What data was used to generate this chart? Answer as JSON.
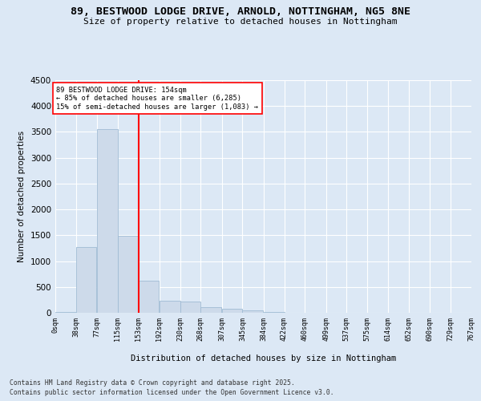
{
  "title": "89, BESTWOOD LODGE DRIVE, ARNOLD, NOTTINGHAM, NG5 8NE",
  "subtitle": "Size of property relative to detached houses in Nottingham",
  "xlabel": "Distribution of detached houses by size in Nottingham",
  "ylabel": "Number of detached properties",
  "bar_color": "#cddaea",
  "bar_edge_color": "#a0bcd4",
  "red_line_x": 153,
  "annotation_title": "89 BESTWOOD LODGE DRIVE: 154sqm",
  "annotation_line1": "← 85% of detached houses are smaller (6,285)",
  "annotation_line2": "15% of semi-detached houses are larger (1,083) →",
  "bin_edges": [
    0,
    38,
    77,
    115,
    153,
    192,
    230,
    268,
    307,
    345,
    384,
    422,
    460,
    499,
    537,
    575,
    614,
    652,
    690,
    729,
    767
  ],
  "bar_heights": [
    15,
    1270,
    3560,
    1490,
    615,
    240,
    210,
    115,
    80,
    50,
    10,
    0,
    0,
    0,
    0,
    0,
    0,
    0,
    0,
    0
  ],
  "ylim": [
    0,
    4500
  ],
  "yticks": [
    0,
    500,
    1000,
    1500,
    2000,
    2500,
    3000,
    3500,
    4000,
    4500
  ],
  "background_color": "#dce8f5",
  "plot_bg_color": "#dce8f5",
  "footer_line1": "Contains HM Land Registry data © Crown copyright and database right 2025.",
  "footer_line2": "Contains public sector information licensed under the Open Government Licence v3.0.",
  "tick_labels": [
    "0sqm",
    "38sqm",
    "77sqm",
    "115sqm",
    "153sqm",
    "192sqm",
    "230sqm",
    "268sqm",
    "307sqm",
    "345sqm",
    "384sqm",
    "422sqm",
    "460sqm",
    "499sqm",
    "537sqm",
    "575sqm",
    "614sqm",
    "652sqm",
    "690sqm",
    "729sqm",
    "767sqm"
  ]
}
